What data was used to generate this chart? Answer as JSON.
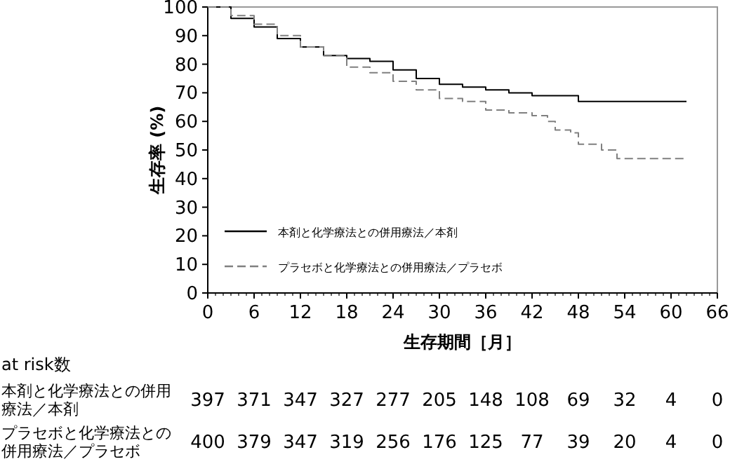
{
  "chart_data": {
    "type": "step",
    "xlabel": "生存期間［月］",
    "ylabel": "生存率 (%)",
    "xlim": [
      0,
      66
    ],
    "xticks": [
      0,
      6,
      12,
      18,
      24,
      30,
      36,
      42,
      48,
      54,
      60,
      66
    ],
    "ylim": [
      0,
      100
    ],
    "yticks": [
      0,
      10,
      20,
      30,
      40,
      50,
      60,
      70,
      80,
      90,
      100
    ],
    "grid": false,
    "legend": "bottom left",
    "series": [
      {
        "name": "本剤と化学療法との併用療法／本剤",
        "color": "#000000",
        "line_style": "solid",
        "x": [
          0,
          3,
          6,
          9,
          12,
          15,
          18,
          21,
          24,
          27,
          30,
          33,
          36,
          39,
          42,
          45,
          48,
          51,
          54,
          57,
          60,
          62
        ],
        "values": [
          100,
          96,
          93,
          89,
          86,
          83,
          82,
          81,
          78,
          75,
          73,
          72,
          71,
          70,
          69,
          69,
          67,
          67,
          67,
          67,
          67,
          67
        ]
      },
      {
        "name": "プラセボと化学療法との併用療法／プラセボ",
        "color": "#808080",
        "line_style": "dashed",
        "x": [
          0,
          3,
          6,
          9,
          12,
          15,
          18,
          21,
          24,
          27,
          30,
          33,
          36,
          39,
          42,
          44,
          45,
          47,
          48,
          51,
          53,
          62
        ],
        "values": [
          100,
          97,
          94,
          90,
          86,
          83,
          79,
          77,
          74,
          71,
          68,
          67,
          64,
          63,
          62,
          60,
          57,
          56,
          52,
          50,
          47,
          47
        ]
      }
    ],
    "annotations": [
      "at risk数",
      "本剤と化学療法との併用療法／本剤",
      "397",
      "371",
      "347",
      "327",
      "277",
      "205",
      "148",
      "108",
      "69",
      "32",
      "4",
      "0",
      "プラセボと化学療法との併用療法／プラセボ",
      "400",
      "379",
      "347",
      "319",
      "256",
      "176",
      "125",
      "77",
      "39",
      "20",
      "4",
      "0"
    ]
  }
}
